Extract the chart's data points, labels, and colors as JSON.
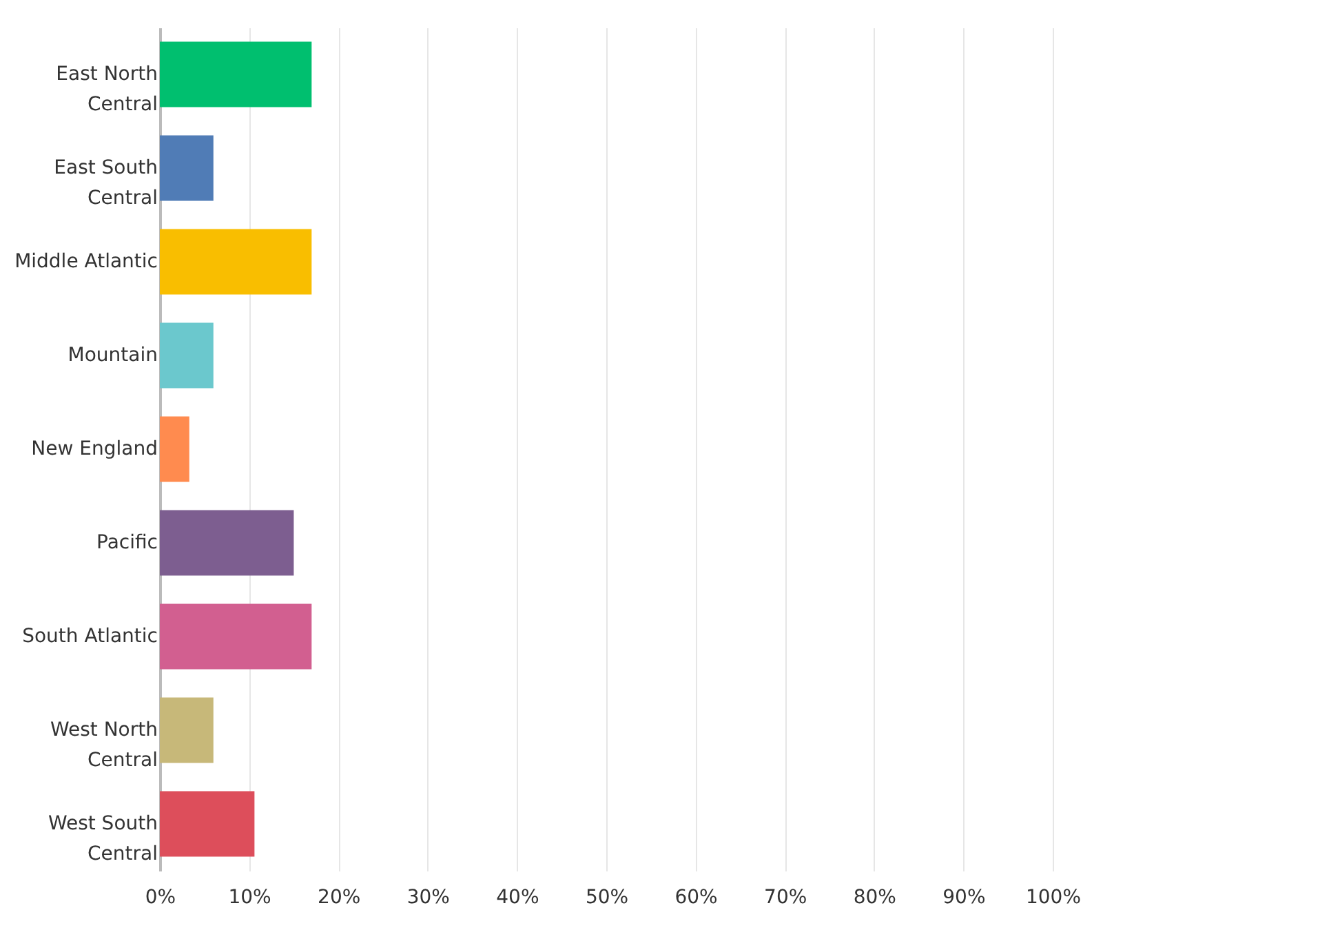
{
  "chart_data": {
    "type": "bar",
    "orientation": "horizontal",
    "categories": [
      "East North Central",
      "East South Central",
      "Middle Atlantic",
      "Mountain",
      "New England",
      "Pacific",
      "South Atlantic",
      "West North Central",
      "West South Central"
    ],
    "values": [
      17,
      6,
      17,
      6,
      3.3,
      15,
      17,
      6,
      10.6
    ],
    "colors": [
      "#00bf6f",
      "#507cb6",
      "#f9be00",
      "#6bc8cd",
      "#ff8b4f",
      "#7d5e90",
      "#d25f90",
      "#c7b879",
      "#dd4e5b"
    ],
    "xlim": [
      0,
      100
    ],
    "xticks": [
      {
        "value": 0,
        "label": "0%"
      },
      {
        "value": 10,
        "label": "10%"
      },
      {
        "value": 20,
        "label": "20%"
      },
      {
        "value": 30,
        "label": "30%"
      },
      {
        "value": 40,
        "label": "40%"
      },
      {
        "value": 50,
        "label": "50%"
      },
      {
        "value": 60,
        "label": "60%"
      },
      {
        "value": 70,
        "label": "70%"
      },
      {
        "value": 80,
        "label": "80%"
      },
      {
        "value": 90,
        "label": "90%"
      },
      {
        "value": 100,
        "label": "100%"
      }
    ],
    "grid": "x"
  }
}
